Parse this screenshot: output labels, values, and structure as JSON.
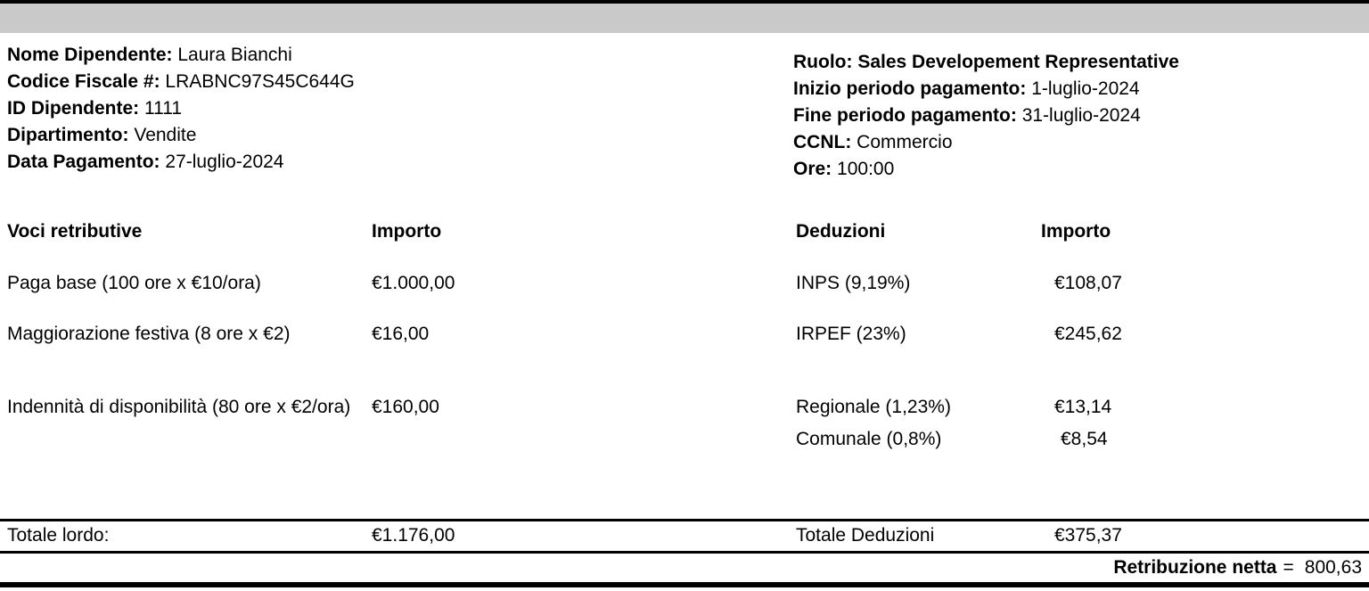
{
  "employee": {
    "name_label": "Nome Dipendente:",
    "name_value": "Laura Bianchi",
    "fiscal_code_label": "Codice Fiscale #:",
    "fiscal_code_value": "LRABNC97S45C644G",
    "id_label": "ID Dipendente:",
    "id_value": "1111",
    "department_label": "Dipartimento:",
    "department_value": "Vendite",
    "pay_date_label": "Data Pagamento:",
    "pay_date_value": "27-luglio-2024"
  },
  "period": {
    "role_label": "Ruolo:",
    "role_value": "Sales Developement Representative",
    "start_label": "Inizio periodo pagamento:",
    "start_value": "1-luglio-2024",
    "end_label": "Fine periodo pagamento:",
    "end_value": "31-luglio-2024",
    "ccnl_label": "CCNL:",
    "ccnl_value": "Commercio",
    "hours_label": "Ore:",
    "hours_value": "100:00"
  },
  "table": {
    "earnings_header": "Voci retributive",
    "earnings_amount_header": "Importo",
    "deductions_header": "Deduzioni",
    "deductions_amount_header": "Importo",
    "earnings": [
      {
        "label": "Paga base (100 ore x €10/ora)",
        "amount": "€1.000,00"
      },
      {
        "label": "Maggiorazione festiva (8 ore x €2)",
        "amount": "€16,00"
      },
      {
        "label": "Indennità di disponibilità (80 ore x €2/ora)",
        "amount": "€160,00"
      }
    ],
    "deductions": [
      {
        "label": "INPS (9,19%)",
        "amount": "€108,07"
      },
      {
        "label": "IRPEF (23%)",
        "amount": "€245,62"
      },
      {
        "label": "Regionale (1,23%)",
        "amount": "€13,14"
      },
      {
        "label": "Comunale (0,8%)",
        "amount": "€8,54"
      }
    ],
    "gross_total_label": "Totale lordo:",
    "gross_total_amount": "€1.176,00",
    "deductions_total_label": "Totale Deduzioni",
    "deductions_total_amount": "€375,37"
  },
  "net": {
    "label": "Retribuzione netta",
    "equals": "=",
    "value": "800,63"
  },
  "colors": {
    "header_bar": "#c9c9c9",
    "rule": "#000000",
    "text": "#000000",
    "background": "#ffffff"
  }
}
